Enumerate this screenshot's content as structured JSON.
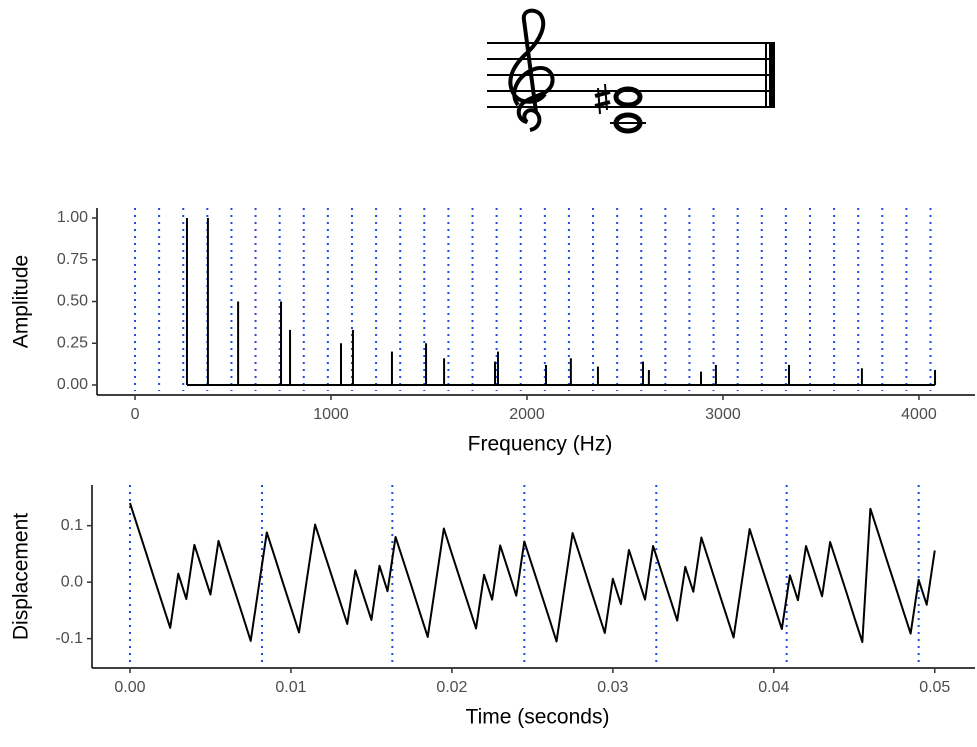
{
  "chart_data": [
    {
      "type": "stem",
      "x_label": "Frequency (Hz)",
      "y_label": "Amplitude",
      "color": "#000000",
      "x": [
        265,
        372,
        526,
        745,
        791,
        1051,
        1112,
        1311,
        1485,
        1577,
        1837,
        1852,
        2097,
        2224,
        2362,
        2592,
        2622,
        2888,
        2964,
        3337,
        3709,
        4082
      ],
      "values": [
        1.0,
        1.0,
        0.5,
        0.5,
        0.33,
        0.25,
        0.33,
        0.2,
        0.25,
        0.16,
        0.14,
        0.2,
        0.12,
        0.16,
        0.11,
        0.14,
        0.09,
        0.08,
        0.12,
        0.12,
        0.1,
        0.09
      ],
      "xlim": [
        -194,
        4286
      ],
      "ylim": [
        -0.06,
        1.06
      ],
      "xticks": [
        0,
        1000,
        2000,
        3000,
        4000
      ],
      "yticks": [
        {
          "value": 0,
          "label": "0.00"
        },
        {
          "value": 0.25,
          "label": "0.25"
        },
        {
          "value": 0.5,
          "label": "0.50"
        },
        {
          "value": 0.75,
          "label": "0.75"
        },
        {
          "value": 1,
          "label": "1.00"
        }
      ],
      "reference_lines": {
        "color": "#2448e6",
        "values": [
          0,
          123,
          246,
          369,
          492,
          615,
          738,
          861,
          984,
          1107,
          1230,
          1353,
          1476,
          1599,
          1722,
          1845,
          1968,
          2091,
          2214,
          2337,
          2460,
          2583,
          2706,
          2829,
          2952,
          3075,
          3198,
          3321,
          3444,
          3567,
          3690,
          3813,
          3936,
          4059
        ]
      }
    },
    {
      "type": "line",
      "x_label": "Time (seconds)",
      "y_label": "Displacement",
      "color": "#000000",
      "x": [
        0,
        0.0005,
        0.001,
        0.0015,
        0.002,
        0.0025,
        0.003,
        0.0035,
        0.004,
        0.0045,
        0.005,
        0.0055,
        0.006,
        0.0065,
        0.007,
        0.0075,
        0.008,
        0.0085,
        0.009,
        0.0095,
        0.01,
        0.0105,
        0.011,
        0.0115,
        0.012,
        0.0125,
        0.013,
        0.0135,
        0.014,
        0.0145,
        0.015,
        0.0155,
        0.016,
        0.0165,
        0.017,
        0.0175,
        0.018,
        0.0185,
        0.019,
        0.0195,
        0.02,
        0.0205,
        0.021,
        0.0215,
        0.022,
        0.0225,
        0.023,
        0.0235,
        0.024,
        0.0245,
        0.025,
        0.0255,
        0.026,
        0.0265,
        0.027,
        0.0275,
        0.028,
        0.0285,
        0.029,
        0.0295,
        0.03,
        0.0305,
        0.031,
        0.0315,
        0.032,
        0.0325,
        0.033,
        0.0335,
        0.034,
        0.0345,
        0.035,
        0.0355,
        0.036,
        0.0365,
        0.037,
        0.0375,
        0.038,
        0.0385,
        0.039,
        0.0395,
        0.04,
        0.0405,
        0.041,
        0.0415,
        0.042,
        0.0425,
        0.043,
        0.0435,
        0.044,
        0.0445,
        0.045,
        0.0455,
        0.046,
        0.0465,
        0.047,
        0.0475,
        0.048,
        0.0485,
        0.049,
        0.0495,
        0.05
      ],
      "values": [
        0.14,
        0.096,
        0.052,
        0.007,
        -0.037,
        -0.081,
        0.015,
        -0.03,
        0.066,
        0.022,
        -0.022,
        0.073,
        0.029,
        -0.015,
        -0.059,
        -0.104,
        -0.008,
        0.088,
        0.044,
        -0.001,
        -0.045,
        -0.089,
        0.007,
        0.102,
        0.058,
        0.014,
        -0.03,
        -0.074,
        0.021,
        -0.023,
        -0.067,
        0.029,
        -0.016,
        0.08,
        0.036,
        -0.008,
        -0.053,
        -0.097,
        -0.001,
        0.095,
        0.05,
        0.006,
        -0.038,
        -0.082,
        0.013,
        -0.031,
        0.065,
        0.021,
        -0.024,
        0.072,
        0.028,
        -0.016,
        -0.06,
        -0.105,
        -0.009,
        0.087,
        0.043,
        -0.002,
        -0.046,
        -0.09,
        0.006,
        -0.039,
        0.057,
        0.013,
        -0.031,
        0.064,
        0.02,
        -0.024,
        -0.068,
        0.027,
        -0.017,
        0.079,
        0.035,
        -0.01,
        -0.054,
        -0.098,
        -0.002,
        0.094,
        0.049,
        0.005,
        -0.039,
        -0.083,
        0.012,
        -0.032,
        0.064,
        0.02,
        -0.025,
        0.071,
        0.027,
        -0.017,
        -0.062,
        -0.106,
        0.13,
        0.086,
        0.041,
        -0.003,
        -0.047,
        -0.091,
        0.004,
        -0.04,
        0.056
      ],
      "xlim": [
        -0.00236,
        0.0525
      ],
      "ylim": [
        -0.152,
        0.172
      ],
      "xticks": [
        {
          "value": 0,
          "label": "0.00"
        },
        0.01,
        0.02,
        0.03,
        0.04,
        0.05
      ],
      "yticks": [
        -0.1,
        {
          "value": 0,
          "label": "0.0"
        },
        0.1
      ],
      "reference_lines": {
        "color": "#2448e6",
        "values": [
          0,
          0.0082,
          0.0163,
          0.0245,
          0.0327,
          0.0408,
          0.049
        ]
      }
    }
  ]
}
